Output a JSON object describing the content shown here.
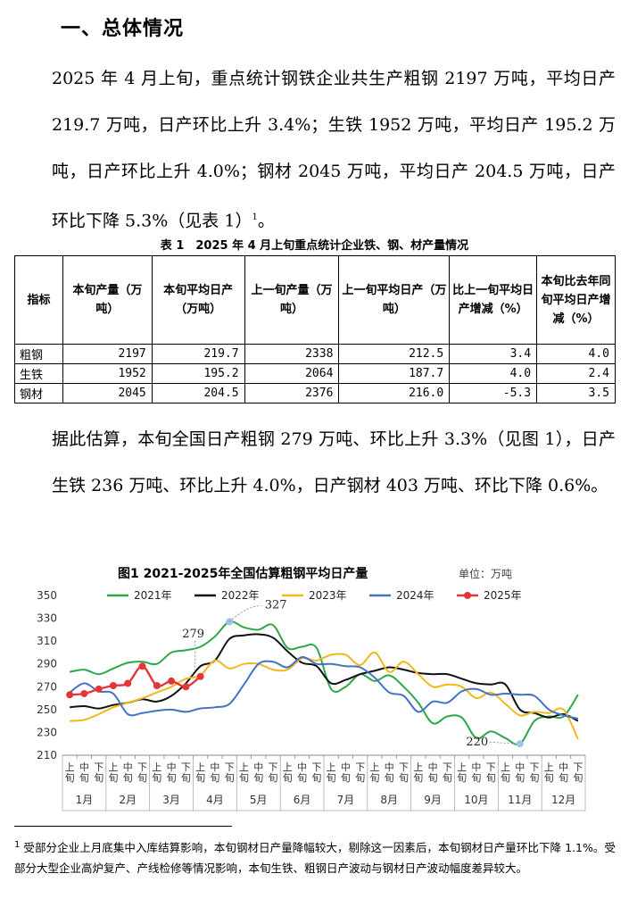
{
  "heading": "一、总体情况",
  "para1": {
    "text": "2025 年 4 月上旬，重点统计钢铁企业共生产粗钢 2197 万吨，平均日产 219.7 万吨，日产环比上升 3.4%；生铁 1952 万吨，平均日产 195.2 万吨，日产环比上升 4.0%；钢材 2045 万吨，平均日产 204.5 万吨，日产环比下降 5.3%（见表 1）",
    "sup": "1",
    "end": "。"
  },
  "table": {
    "caption": "表 1　2025 年 4 月上旬重点统计企业铁、钢、材产量情况",
    "headers": [
      "指标",
      "本旬产量（万吨）",
      "本旬平均日产（万吨）",
      "上一旬产量（万吨）",
      "上一旬平均日产（万吨）",
      "比上一旬平均日产增减（%）",
      "本旬比去年同旬平均日产增减（%）"
    ],
    "rows": [
      [
        "粗钢",
        "2197",
        "219.7",
        "2338",
        "212.5",
        "3.4",
        "4.0"
      ],
      [
        "生铁",
        "1952",
        "195.2",
        "2064",
        "187.7",
        "4.0",
        "2.4"
      ],
      [
        "钢材",
        "2045",
        "204.5",
        "2376",
        "216.0",
        "-5.3",
        "3.5"
      ]
    ]
  },
  "para2": {
    "text": "据此估算，本旬全国日产粗钢 279 万吨、环比上升 3.3%（见图 1），日产生铁 236 万吨、环比上升 4.0%，日产钢材 403 万吨、环比下降 0.6%。"
  },
  "chart_data": {
    "type": "line",
    "title": "图1  2021-2025年全国估算粗钢平均日产量",
    "unit_label": "单位：万吨",
    "ylim": [
      210,
      350
    ],
    "yticks": [
      210,
      230,
      250,
      270,
      290,
      310,
      330,
      350
    ],
    "grid": false,
    "legend": "top",
    "x_sub_labels": [
      "上旬",
      "中旬",
      "下旬"
    ],
    "months": [
      "1月",
      "2月",
      "3月",
      "4月",
      "5月",
      "6月",
      "7月",
      "8月",
      "9月",
      "10月",
      "11月",
      "12月"
    ],
    "annotations": [
      "279",
      "327",
      "220"
    ],
    "series": [
      {
        "name": "2021年",
        "color": "#2ca84a",
        "values": [
          283,
          285,
          281,
          286,
          291,
          292,
          290,
          300,
          302,
          305,
          314,
          327,
          322,
          320,
          324,
          304,
          305,
          304,
          268,
          270,
          281,
          275,
          280,
          270,
          256,
          238,
          244,
          243,
          225,
          231,
          225,
          220,
          240,
          244,
          244,
          263
        ]
      },
      {
        "name": "2022年",
        "color": "#111111",
        "values": [
          252,
          253,
          251,
          254,
          256,
          259,
          257,
          262,
          273,
          288,
          293,
          312,
          315,
          316,
          313,
          301,
          291,
          288,
          273,
          276,
          281,
          284,
          287,
          285,
          282,
          281,
          281,
          277,
          273,
          272,
          272,
          250,
          247,
          243,
          246,
          240
        ]
      },
      {
        "name": "2023年",
        "color": "#f0b81c",
        "values": [
          240,
          241,
          246,
          252,
          256,
          260,
          265,
          270,
          277,
          280,
          293,
          286,
          290,
          290,
          285,
          285,
          295,
          293,
          298,
          298,
          289,
          300,
          283,
          292,
          281,
          270,
          272,
          270,
          260,
          265,
          255,
          245,
          248,
          247,
          250,
          224
        ]
      },
      {
        "name": "2024年",
        "color": "#4472c4",
        "values": [
          265,
          273,
          266,
          264,
          246,
          247,
          249,
          250,
          248,
          251,
          252,
          255,
          272,
          290,
          292,
          287,
          296,
          290,
          290,
          288,
          287,
          278,
          265,
          262,
          248,
          257,
          256,
          266,
          268,
          263,
          264,
          263,
          262,
          250,
          245,
          242
        ]
      },
      {
        "name": "2025年",
        "color": "#e3363b",
        "values": [
          263,
          264,
          268,
          271,
          273,
          288,
          271,
          275,
          270,
          279,
          null,
          null,
          null,
          null,
          null,
          null,
          null,
          null,
          null,
          null,
          null,
          null,
          null,
          null,
          null,
          null,
          null,
          null,
          null,
          null,
          null,
          null,
          null,
          null,
          null,
          null
        ]
      }
    ]
  },
  "footnote": {
    "sup": "1",
    "text": " 受部分企业上月底集中入库结算影响，本旬钢材日产量降幅较大，剔除这一因素后，本旬钢材日产量环比下降 1.1%。受部分大型企业高炉复产、产线检修等情况影响，本旬生铁、粗钢日产波动与钢材日产波动幅度差异较大。"
  }
}
